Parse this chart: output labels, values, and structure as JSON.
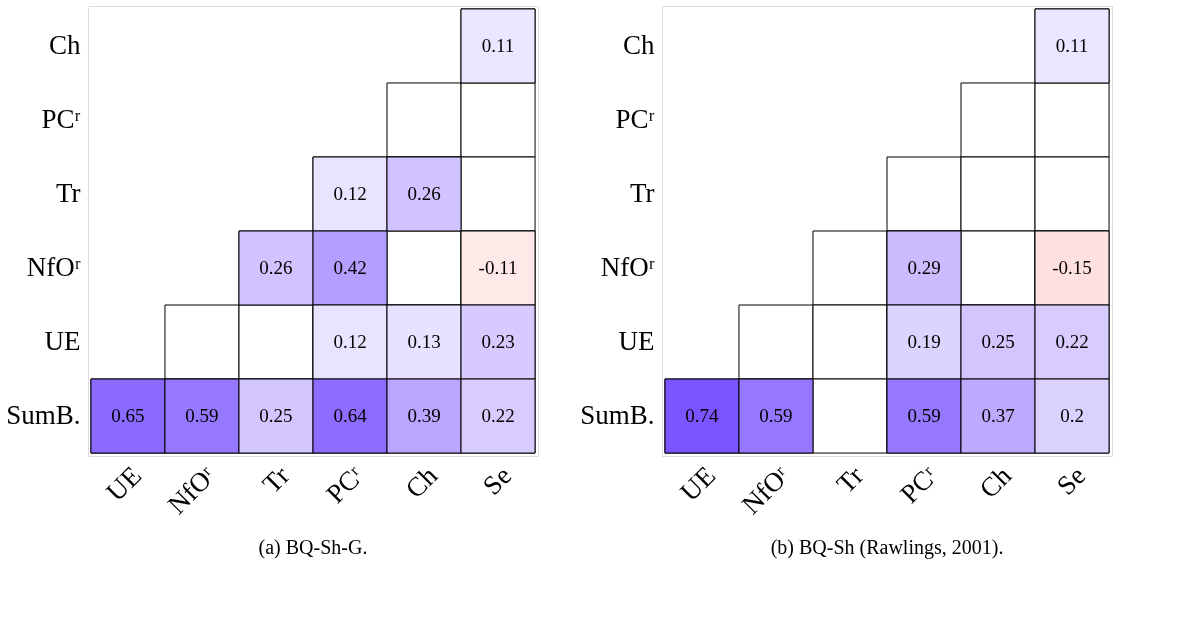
{
  "chart_data": [
    {
      "type": "heatmap",
      "data_labels": true,
      "title": "(a) BQ-Sh-G.",
      "categories": [
        "UE",
        "NfOʳ",
        "Tr",
        "PCʳ",
        "Ch",
        "Se"
      ],
      "y_categories": [
        "Ch",
        "PCʳ",
        "Tr",
        "NfOʳ",
        "UE",
        "SumB."
      ],
      "cells": [
        [
          null,
          null,
          null,
          null,
          null,
          0.11
        ],
        [
          null,
          null,
          null,
          null,
          null,
          null
        ],
        [
          null,
          null,
          null,
          0.12,
          0.26,
          null
        ],
        [
          null,
          null,
          0.26,
          0.42,
          null,
          -0.11
        ],
        [
          null,
          null,
          null,
          0.12,
          0.13,
          0.23
        ],
        [
          0.65,
          0.59,
          0.25,
          0.64,
          0.39,
          0.22
        ]
      ]
    },
    {
      "type": "heatmap",
      "data_labels": true,
      "title": "(b) BQ-Sh (Rawlings, 2001).",
      "categories": [
        "UE",
        "NfOʳ",
        "Tr",
        "PCʳ",
        "Ch",
        "Se"
      ],
      "y_categories": [
        "Ch",
        "PCʳ",
        "Tr",
        "NfOʳ",
        "UE",
        "SumB."
      ],
      "cells": [
        [
          null,
          null,
          null,
          null,
          null,
          0.11
        ],
        [
          null,
          null,
          null,
          null,
          null,
          null
        ],
        [
          null,
          null,
          null,
          null,
          null,
          null
        ],
        [
          null,
          null,
          null,
          0.29,
          null,
          -0.15
        ],
        [
          null,
          null,
          null,
          0.19,
          0.25,
          0.22
        ],
        [
          0.74,
          0.59,
          null,
          0.59,
          0.37,
          0.2
        ]
      ]
    }
  ]
}
